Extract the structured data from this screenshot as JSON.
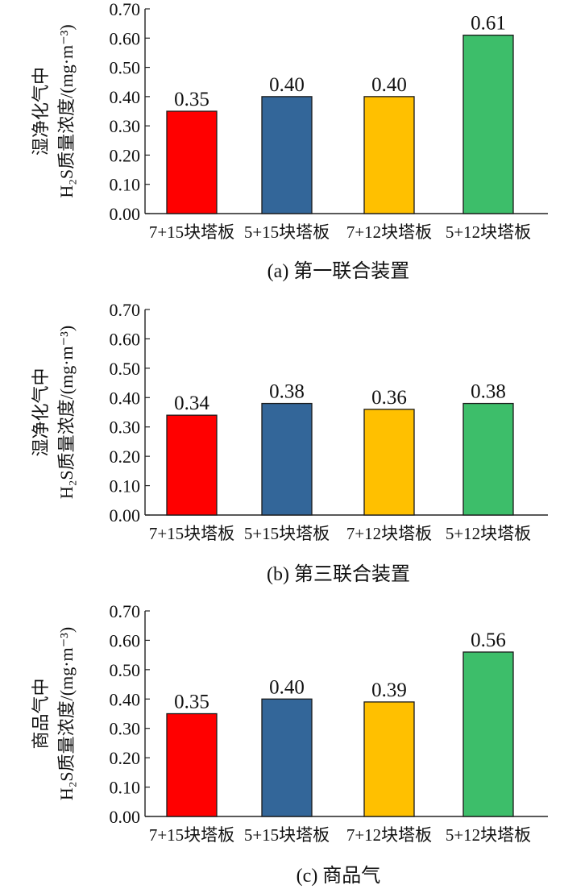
{
  "chart_data": [
    {
      "type": "bar",
      "caption": "(a) 第一联合装置",
      "ylabel_lines": [
        "湿净化气中",
        "H₂S质量浓度/(mg·m⁻³)"
      ],
      "categories": [
        "7+15块塔板",
        "5+15块塔板",
        "7+12块塔板",
        "5+12块塔板"
      ],
      "values": [
        0.35,
        0.4,
        0.4,
        0.61
      ],
      "value_labels": [
        "0.35",
        "0.40",
        "0.40",
        "0.61"
      ],
      "colors": [
        "#ff0000",
        "#336699",
        "#ffc000",
        "#3dbe6a"
      ],
      "ylim": [
        0,
        0.7
      ],
      "yticks": [
        "0.00",
        "0.10",
        "0.20",
        "0.30",
        "0.40",
        "0.50",
        "0.60",
        "0.70"
      ]
    },
    {
      "type": "bar",
      "caption": "(b) 第三联合装置",
      "ylabel_lines": [
        "湿净化气中",
        "H₂S质量浓度/(mg·m⁻³)"
      ],
      "categories": [
        "7+15块塔板",
        "5+15块塔板",
        "7+12块塔板",
        "5+12块塔板"
      ],
      "values": [
        0.34,
        0.38,
        0.36,
        0.38
      ],
      "value_labels": [
        "0.34",
        "0.38",
        "0.36",
        "0.38"
      ],
      "colors": [
        "#ff0000",
        "#336699",
        "#ffc000",
        "#3dbe6a"
      ],
      "ylim": [
        0,
        0.7
      ],
      "yticks": [
        "0.00",
        "0.10",
        "0.20",
        "0.30",
        "0.40",
        "0.50",
        "0.60",
        "0.70"
      ]
    },
    {
      "type": "bar",
      "caption": "(c) 商品气",
      "ylabel_lines": [
        "商品气中",
        "H₂S质量浓度/(mg·m⁻³)"
      ],
      "categories": [
        "7+15块塔板",
        "5+15块塔板",
        "7+12块塔板",
        "5+12块塔板"
      ],
      "values": [
        0.35,
        0.4,
        0.39,
        0.56
      ],
      "value_labels": [
        "0.35",
        "0.40",
        "0.39",
        "0.56"
      ],
      "colors": [
        "#ff0000",
        "#336699",
        "#ffc000",
        "#3dbe6a"
      ],
      "ylim": [
        0,
        0.7
      ],
      "yticks": [
        "0.00",
        "0.10",
        "0.20",
        "0.30",
        "0.40",
        "0.50",
        "0.60",
        "0.70"
      ]
    }
  ]
}
